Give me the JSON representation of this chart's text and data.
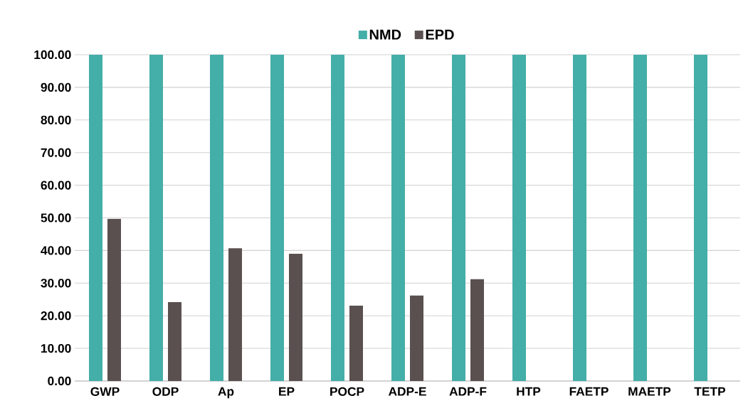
{
  "chart_data": {
    "type": "bar",
    "categories": [
      "GWP",
      "ODP",
      "Ap",
      "EP",
      "POCP",
      "ADP-E",
      "ADP-F",
      "HTP",
      "FAETP",
      "MAETP",
      "TETP"
    ],
    "series": [
      {
        "name": "NMD",
        "color": "#44aea8",
        "values": [
          100,
          100,
          100,
          100,
          100,
          100,
          100,
          100,
          100,
          100,
          100
        ]
      },
      {
        "name": "EPD",
        "color": "#5a504f",
        "values": [
          49.7,
          24.2,
          40.7,
          39.0,
          23.1,
          26.2,
          31.2,
          null,
          null,
          null,
          null
        ]
      }
    ],
    "ylim": [
      0,
      100
    ],
    "yticks": [
      {
        "value": 0,
        "label": "0.00"
      },
      {
        "value": 10,
        "label": "10.00"
      },
      {
        "value": 20,
        "label": "20.00"
      },
      {
        "value": 30,
        "label": "30.00"
      },
      {
        "value": 40,
        "label": "40.00"
      },
      {
        "value": 50,
        "label": "50.00"
      },
      {
        "value": 60,
        "label": "60.00"
      },
      {
        "value": 70,
        "label": "70.00"
      },
      {
        "value": 80,
        "label": "80.00"
      },
      {
        "value": 90,
        "label": "90.00"
      },
      {
        "value": 100,
        "label": "100.00"
      }
    ],
    "grid": "y",
    "legend": "top"
  }
}
